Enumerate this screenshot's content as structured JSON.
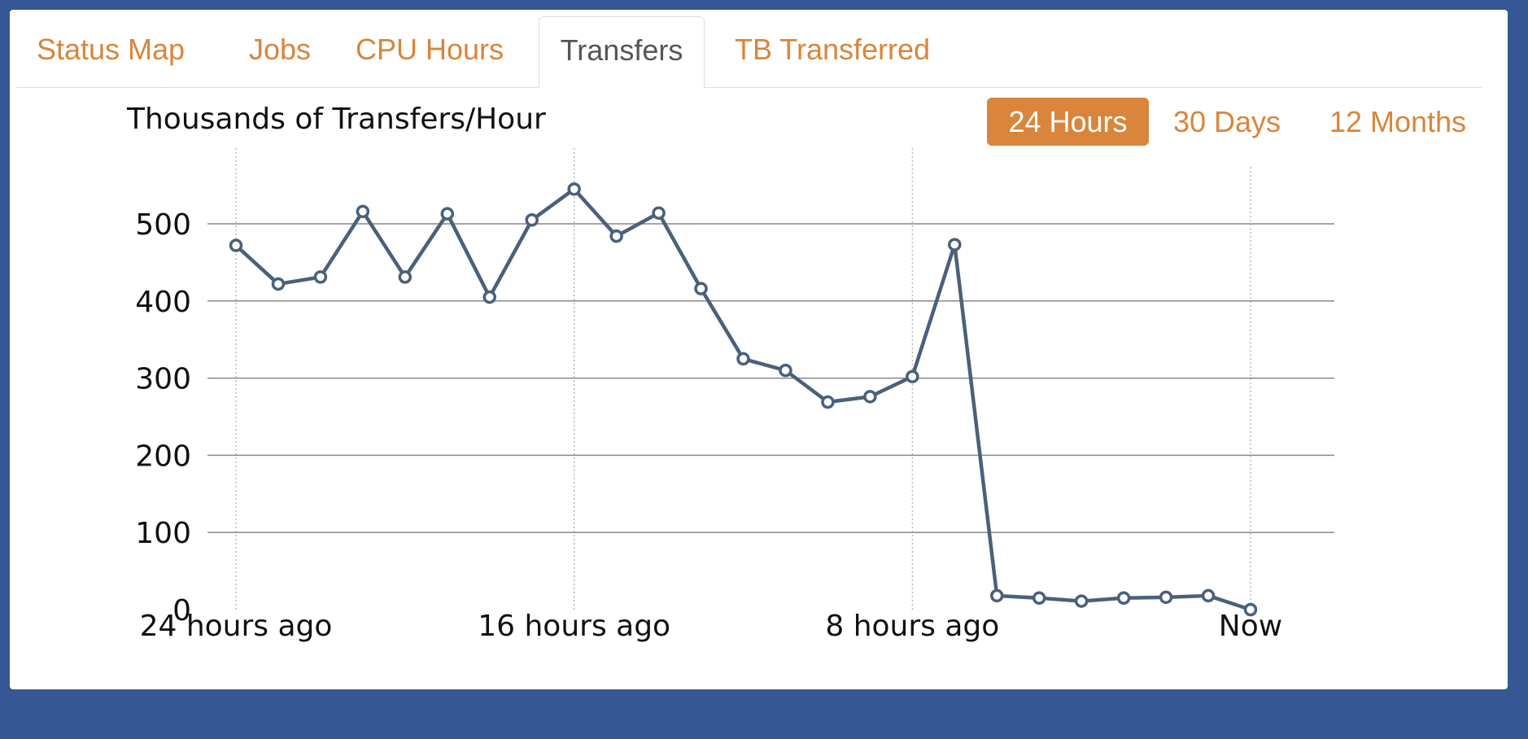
{
  "tabs": [
    {
      "label": "Status Map",
      "active": false
    },
    {
      "label": "Jobs",
      "active": false
    },
    {
      "label": "CPU Hours",
      "active": false
    },
    {
      "label": "Transfers",
      "active": true
    },
    {
      "label": "TB Transferred",
      "active": false
    }
  ],
  "ranges": [
    {
      "label": "24 Hours",
      "active": true
    },
    {
      "label": "30 Days",
      "active": false
    },
    {
      "label": "12 Months",
      "active": false
    }
  ],
  "colors": {
    "background": "#355794",
    "accent": "#d9853b",
    "series": "#4a607b"
  },
  "chart_data": {
    "type": "line",
    "title": "Thousands of Transfers/Hour",
    "ylim": [
      0,
      500
    ],
    "y_ticks": [
      0,
      100,
      200,
      300,
      400,
      500
    ],
    "x_tick_labels": [
      "24 hours ago",
      "16 hours ago",
      "8 hours ago",
      "Now"
    ],
    "x_tick_hours_ago": [
      24,
      16,
      8,
      0
    ],
    "grid": "horizontal solid, vertical dotted at x ticks",
    "legend": "none",
    "series": [
      {
        "x_hours_ago": [
          24,
          23,
          22,
          21,
          20,
          19,
          18,
          17,
          16,
          15,
          14,
          13,
          12,
          11,
          10,
          9,
          8,
          7,
          6,
          5,
          4,
          3,
          2,
          1,
          0
        ],
        "values": [
          472,
          422,
          431,
          516,
          431,
          513,
          405,
          505,
          545,
          484,
          514,
          416,
          325,
          310,
          269,
          276,
          302,
          473,
          18,
          15,
          11,
          15,
          16,
          18,
          0
        ]
      }
    ]
  }
}
